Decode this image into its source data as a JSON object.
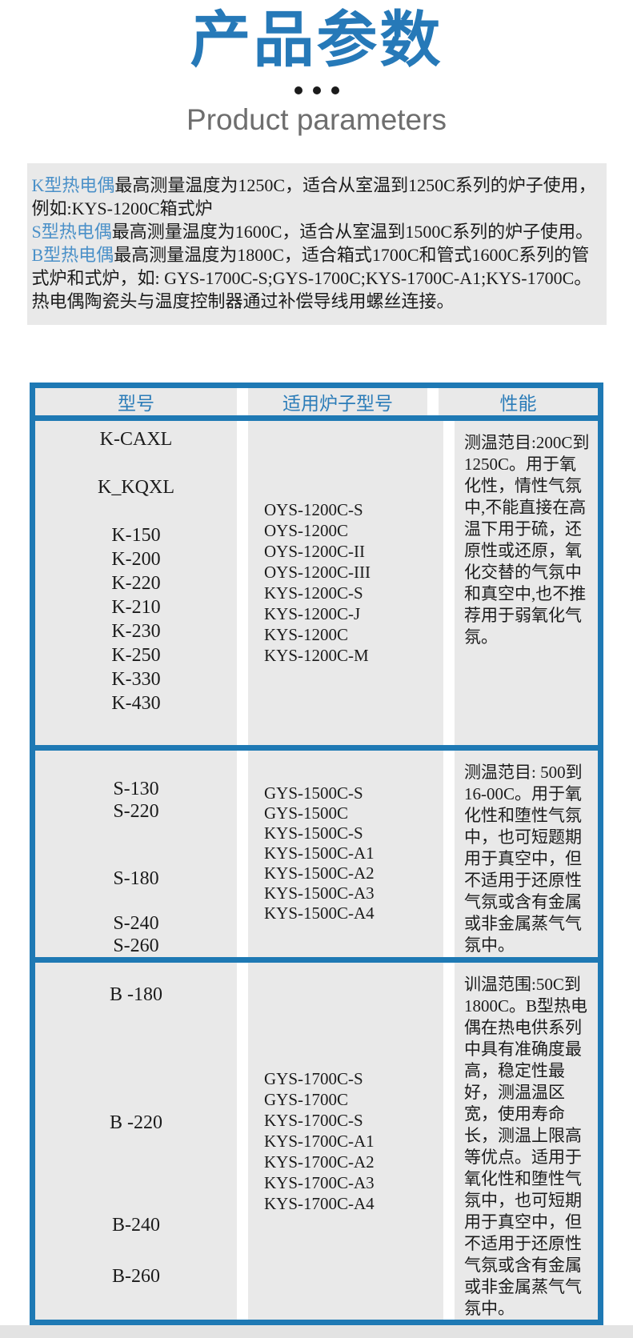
{
  "page": {
    "title": "产品参数",
    "subtitle": "Product parameters"
  },
  "intro": {
    "lines": [
      {
        "highlight": "K型热电偶",
        "text": "最高测量温度为1250C，适合从室温到1250C系列的炉子使用，例如:KYS-1200C箱式炉"
      },
      {
        "highlight": "S型热电偶",
        "text": "最高测量温度为1600C，适合从室温到1500C系列的炉子使用。"
      },
      {
        "highlight": "B型热电偶",
        "text": "最高测量温度为1800C，适合箱式1700C和管式1600C系列的管式炉和式炉，如: GYS-1700C-S;GYS-1700C;KYS-1700C-A1;KYS-1700C。"
      },
      {
        "highlight": "",
        "text": "热电偶陶瓷头与温度控制器通过补偿导线用螺丝连接。"
      }
    ]
  },
  "table": {
    "headers": [
      "型号",
      "适用炉子型号",
      "性能"
    ],
    "sections": [
      {
        "series": "K",
        "models": [
          "K-CAXL",
          "",
          "K_KQXL",
          "",
          "K-150",
          "K-200",
          "K-220",
          "K-210",
          "K-230",
          "K-250",
          "K-330",
          "K-430"
        ],
        "furnace_models": [
          "OYS-1200C-S",
          "OYS-1200C",
          "OYS-1200C-II",
          "OYS-1200C-III",
          "KYS-1200C-S",
          "KYS-1200C-J",
          "KYS-1200C",
          "KYS-1200C-M"
        ],
        "performance": "测温范目:200C到1250C。用于氧化性，情性气氛中,不能直接在高温下用于硫，还原性或还原，氧化交替的气氛中和真空中,也不推荐用于弱氧化气氛。"
      },
      {
        "series": "S",
        "models": [
          "S-130",
          "S-220",
          "",
          "",
          "S-180",
          "",
          "S-240",
          "S-260"
        ],
        "furnace_models": [
          "GYS-1500C-S",
          "GYS-1500C",
          "KYS-1500C-S",
          "KYS-1500C-A1",
          "KYS-1500C-A2",
          "KYS-1500C-A3",
          "KYS-1500C-A4"
        ],
        "performance": "测温范目: 500到16-00C。用于氧化性和堕性气氛中，也可短题期用于真空中，但不适用于还原性气氛或含有金属或非金属蒸气气氛中。"
      },
      {
        "series": "B",
        "models": [
          "B -180",
          "",
          "",
          "",
          "",
          "B -220",
          "",
          "",
          "",
          "B-240",
          "",
          "B-260"
        ],
        "furnace_models": [
          "GYS-1700C-S",
          "GYS-1700C",
          "KYS-1700C-S",
          "KYS-1700C-A1",
          "KYS-1700C-A2",
          "KYS-1700C-A3",
          "KYS-1700C-A4"
        ],
        "performance": "训温范围:50C到1800C。B型热电偶在热电供系列中具有准确度最高，稳定性最好，测温温区宽，使用寿命长，测温上限高等优点。适用于氧化性和堕性气氛中，也可短期用于真空中，但不适用于还原性气氛或含有金属或非金属蒸气气氛中。"
      }
    ]
  },
  "colors": {
    "accent_blue": "#1e79b4",
    "title_blue": "#2679b8",
    "header_text_blue": "#2b7cb8",
    "highlight_blue": "#4a90c8",
    "cell_gray": "#e9e9e9",
    "subtitle_gray": "#6e6e6e",
    "text_black": "#1b1b1b"
  }
}
